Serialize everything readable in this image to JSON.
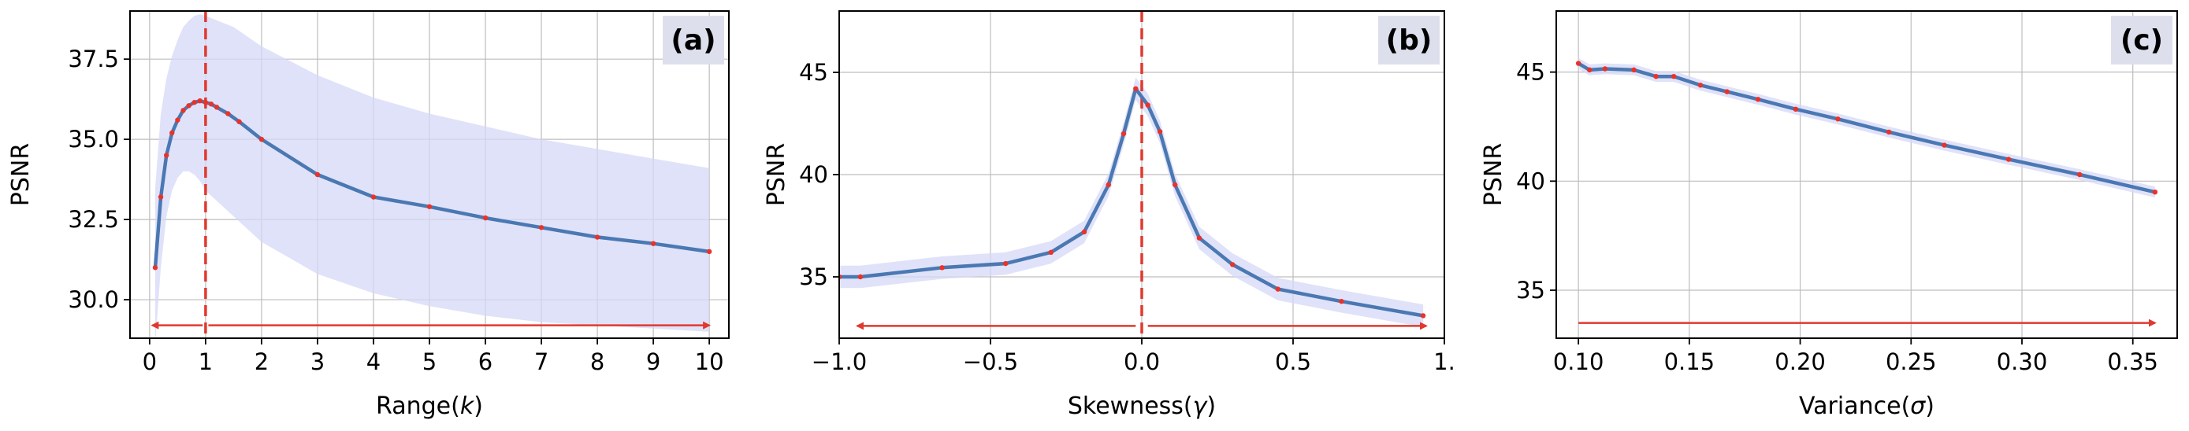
{
  "chart_data": [
    {
      "type": "line",
      "panel_label": "(a)",
      "xlabel": "Range(k)",
      "ylabel": "PSNR",
      "xlim": [
        -0.35,
        10.35
      ],
      "ylim": [
        28.8,
        39.0
      ],
      "xticks": [
        0,
        1,
        2,
        3,
        4,
        5,
        6,
        7,
        8,
        9,
        10
      ],
      "xtick_labels": [
        "0",
        "1",
        "2",
        "3",
        "4",
        "5",
        "6",
        "7",
        "8",
        "9",
        "10"
      ],
      "yticks": [
        30.0,
        32.5,
        35.0,
        37.5
      ],
      "ytick_labels": [
        "30.0",
        "32.5",
        "35.0",
        "37.5"
      ],
      "grid": true,
      "vline_x": 1,
      "arrows": [
        [
          0.95,
          0.05
        ],
        [
          1.05,
          10.0
        ]
      ],
      "arrow_y": 29.2,
      "band": {
        "x": [
          0.1,
          0.2,
          0.3,
          0.4,
          0.5,
          0.6,
          0.7,
          0.8,
          0.9,
          1.0,
          1.5,
          2,
          3,
          4,
          5,
          6,
          7,
          8,
          9,
          10
        ],
        "upper": [
          33.5,
          35.8,
          36.9,
          37.6,
          38.1,
          38.5,
          38.7,
          38.85,
          38.9,
          38.85,
          38.5,
          37.9,
          37.0,
          36.3,
          35.8,
          35.4,
          35.0,
          34.7,
          34.4,
          34.1
        ],
        "lower": [
          28.6,
          31.0,
          32.6,
          33.4,
          33.8,
          34.0,
          34.0,
          33.9,
          33.7,
          33.4,
          32.6,
          31.8,
          30.8,
          30.2,
          29.8,
          29.5,
          29.3,
          29.2,
          29.1,
          29.0
        ]
      },
      "series": [
        {
          "x": [
            0.1,
            0.2,
            0.3,
            0.4,
            0.5,
            0.6,
            0.7,
            0.8,
            0.9,
            1.0,
            1.1,
            1.2,
            1.4,
            1.6,
            2,
            3,
            4,
            5,
            6,
            7,
            8,
            9,
            10
          ],
          "y": [
            31.0,
            33.2,
            34.5,
            35.2,
            35.6,
            35.9,
            36.05,
            36.15,
            36.2,
            36.15,
            36.1,
            36.0,
            35.8,
            35.55,
            35.0,
            33.9,
            33.2,
            32.9,
            32.55,
            32.25,
            31.95,
            31.75,
            31.5
          ]
        }
      ]
    },
    {
      "type": "line",
      "panel_label": "(b)",
      "xlabel": "Skewness(γ)",
      "ylabel": "PSNR",
      "xlim": [
        -1.0,
        1.0
      ],
      "ylim": [
        32.0,
        48.0
      ],
      "xticks": [
        -1.0,
        -0.5,
        0.0,
        0.5,
        1.0
      ],
      "xtick_labels": [
        "−1.0",
        "−0.5",
        "0.0",
        "0.5",
        "1."
      ],
      "yticks": [
        35,
        40,
        45
      ],
      "ytick_labels": [
        "35",
        "40",
        "45"
      ],
      "grid": true,
      "vline_x": 0,
      "arrows": [
        [
          -0.02,
          -0.94
        ],
        [
          0.02,
          0.94
        ]
      ],
      "arrow_y": 32.6,
      "band_halfwidth": 0.55,
      "series": [
        {
          "x": [
            -1.0,
            -0.93,
            -0.66,
            -0.45,
            -0.3,
            -0.19,
            -0.11,
            -0.06,
            -0.02,
            0.02,
            0.06,
            0.11,
            0.19,
            0.3,
            0.45,
            0.66,
            0.93
          ],
          "y": [
            35.0,
            35.0,
            35.45,
            35.65,
            36.2,
            37.2,
            39.5,
            42.0,
            44.2,
            43.4,
            42.1,
            39.5,
            36.9,
            35.6,
            34.4,
            33.8,
            33.1
          ]
        }
      ]
    },
    {
      "type": "line",
      "panel_label": "(c)",
      "xlabel": "Variance(σ)",
      "ylabel": "PSNR",
      "xlim": [
        0.09,
        0.37
      ],
      "ylim": [
        32.8,
        47.8
      ],
      "xticks": [
        0.1,
        0.15,
        0.2,
        0.25,
        0.3,
        0.35
      ],
      "xtick_labels": [
        "0.10",
        "0.15",
        "0.20",
        "0.25",
        "0.30",
        "0.35"
      ],
      "yticks": [
        35,
        40,
        45
      ],
      "ytick_labels": [
        "35",
        "40",
        "45"
      ],
      "grid": true,
      "arrows": [
        [
          0.1,
          0.36
        ]
      ],
      "arrow_y": 33.5,
      "band_halfwidth": 0.25,
      "series": [
        {
          "x": [
            0.1,
            0.105,
            0.112,
            0.125,
            0.135,
            0.143,
            0.155,
            0.167,
            0.181,
            0.198,
            0.217,
            0.24,
            0.265,
            0.294,
            0.326,
            0.36
          ],
          "y": [
            45.4,
            45.1,
            45.15,
            45.1,
            44.8,
            44.8,
            44.4,
            44.1,
            43.75,
            43.3,
            42.85,
            42.25,
            41.65,
            41.0,
            40.3,
            39.5
          ]
        }
      ]
    }
  ],
  "colors": {
    "line": "#4a78b2",
    "marker": "#e8332a",
    "band": "#d5d8f7",
    "guide": "#e0392f",
    "label_box": "#dde0ec",
    "grid": "#bdbdbd"
  }
}
